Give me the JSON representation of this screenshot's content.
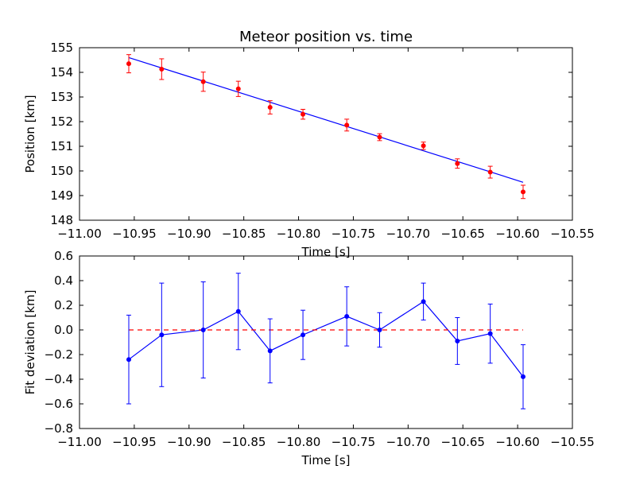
{
  "chart_data": [
    {
      "type": "scatter",
      "title": "Meteor position vs. time",
      "xlabel": "Time [s]",
      "ylabel": "Position [km]",
      "xlim": [
        -11.0,
        -10.55
      ],
      "ylim": [
        148,
        155
      ],
      "xticks": [
        -11.0,
        -10.95,
        -10.9,
        -10.85,
        -10.8,
        -10.75,
        -10.7,
        -10.65,
        -10.6,
        -10.55
      ],
      "xtick_labels": [
        "−11.00",
        "−10.95",
        "−10.90",
        "−10.85",
        "−10.80",
        "−10.75",
        "−10.70",
        "−10.65",
        "−10.60",
        "−10.55"
      ],
      "yticks": [
        148,
        149,
        150,
        151,
        152,
        153,
        154,
        155
      ],
      "ytick_labels": [
        "148",
        "149",
        "150",
        "151",
        "152",
        "153",
        "154",
        "155"
      ],
      "grid": false,
      "colors": {
        "points": "#ff0000",
        "fit": "#0000ff"
      },
      "series": [
        {
          "kind": "points_with_errorbars",
          "x": [
            -10.955,
            -10.925,
            -10.887,
            -10.855,
            -10.826,
            -10.796,
            -10.756,
            -10.726,
            -10.686,
            -10.655,
            -10.625,
            -10.595
          ],
          "y": [
            154.35,
            154.13,
            153.62,
            153.33,
            152.58,
            152.3,
            151.86,
            151.37,
            151.02,
            150.3,
            149.95,
            149.15
          ],
          "yerr": [
            0.37,
            0.42,
            0.39,
            0.31,
            0.27,
            0.2,
            0.24,
            0.14,
            0.15,
            0.19,
            0.24,
            0.27
          ]
        },
        {
          "kind": "fit_line",
          "x": [
            -10.955,
            -10.595
          ],
          "y": [
            154.6,
            149.54
          ]
        }
      ]
    },
    {
      "type": "line",
      "xlabel": "Time [s]",
      "ylabel": "Fit deviation [km]",
      "xlim": [
        -11.0,
        -10.55
      ],
      "ylim": [
        -0.8,
        0.6
      ],
      "xticks": [
        -11.0,
        -10.95,
        -10.9,
        -10.85,
        -10.8,
        -10.75,
        -10.7,
        -10.65,
        -10.6,
        -10.55
      ],
      "xtick_labels": [
        "−11.00",
        "−10.95",
        "−10.90",
        "−10.85",
        "−10.80",
        "−10.75",
        "−10.70",
        "−10.65",
        "−10.60",
        "−10.55"
      ],
      "yticks": [
        -0.8,
        -0.6,
        -0.4,
        -0.2,
        0.0,
        0.2,
        0.4,
        0.6
      ],
      "ytick_labels": [
        "−0.8",
        "−0.6",
        "−0.4",
        "−0.2",
        "0.0",
        "0.2",
        "0.4",
        "0.6"
      ],
      "grid": false,
      "colors": {
        "residuals": "#0000ff",
        "zero_line": "#ff0000"
      },
      "series": [
        {
          "kind": "line_with_errorbars",
          "x": [
            -10.955,
            -10.925,
            -10.887,
            -10.855,
            -10.826,
            -10.796,
            -10.756,
            -10.726,
            -10.686,
            -10.655,
            -10.625,
            -10.595
          ],
          "y": [
            -0.24,
            -0.04,
            0.0,
            0.15,
            -0.17,
            -0.04,
            0.11,
            0.0,
            0.23,
            -0.09,
            -0.03,
            -0.38
          ],
          "yerr": [
            0.36,
            0.42,
            0.39,
            0.31,
            0.26,
            0.2,
            0.24,
            0.14,
            0.15,
            0.19,
            0.24,
            0.26
          ]
        },
        {
          "kind": "zero_reference_dashed",
          "x": [
            -10.955,
            -10.595
          ],
          "y": [
            0.0,
            0.0
          ]
        }
      ]
    }
  ]
}
